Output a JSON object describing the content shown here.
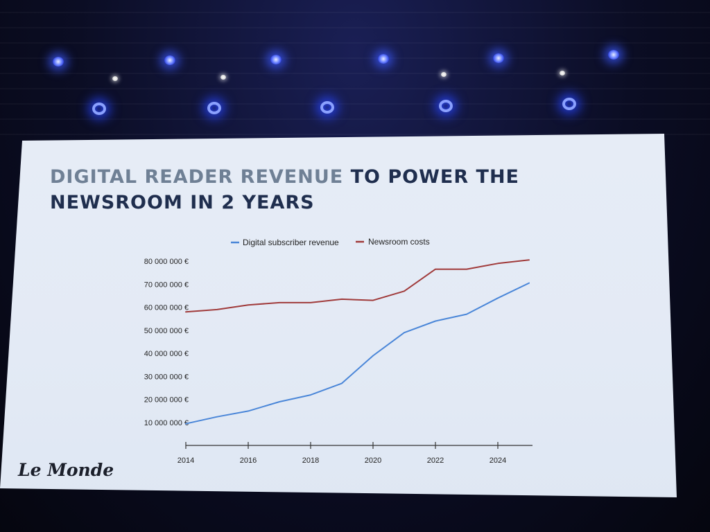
{
  "slide": {
    "title_accent": "DIGITAL READER REVENUE",
    "title_rest_line1": " TO POWER THE",
    "title_line2": "NEWSROOM IN 2 YEARS",
    "brand": "Le Monde"
  },
  "colors": {
    "revenue": "#4a86d8",
    "costs": "#a03a3a",
    "title": "#1f2e4e",
    "title_accent": "#6f8095"
  },
  "chart_data": {
    "type": "line",
    "title": "",
    "xlabel": "",
    "ylabel": "",
    "x": [
      2014,
      2015,
      2016,
      2017,
      2018,
      2019,
      2020,
      2021,
      2022,
      2023,
      2024,
      2025
    ],
    "xticks": [
      "2014",
      "2016",
      "2018",
      "2020",
      "2022",
      "2024"
    ],
    "yticks": [
      "10 000 000 €",
      "20 000 000 €",
      "30 000 000 €",
      "40 000 000 €",
      "50 000 000 €",
      "60 000 000 €",
      "70 000 000 €",
      "80 000 000 €"
    ],
    "ylim": [
      10000000,
      80000000
    ],
    "legend_position": "top-center",
    "grid": false,
    "series": [
      {
        "name": "Digital subscriber revenue",
        "color": "#4a86d8",
        "values": [
          9500000,
          12500000,
          15000000,
          19000000,
          22000000,
          27000000,
          39000000,
          49000000,
          54000000,
          57000000,
          64000000,
          70500000
        ]
      },
      {
        "name": "Newsroom costs",
        "color": "#a03a3a",
        "values": [
          58000000,
          59000000,
          61000000,
          62000000,
          62000000,
          63500000,
          63000000,
          67000000,
          76500000,
          76500000,
          79000000,
          80500000
        ]
      }
    ]
  }
}
